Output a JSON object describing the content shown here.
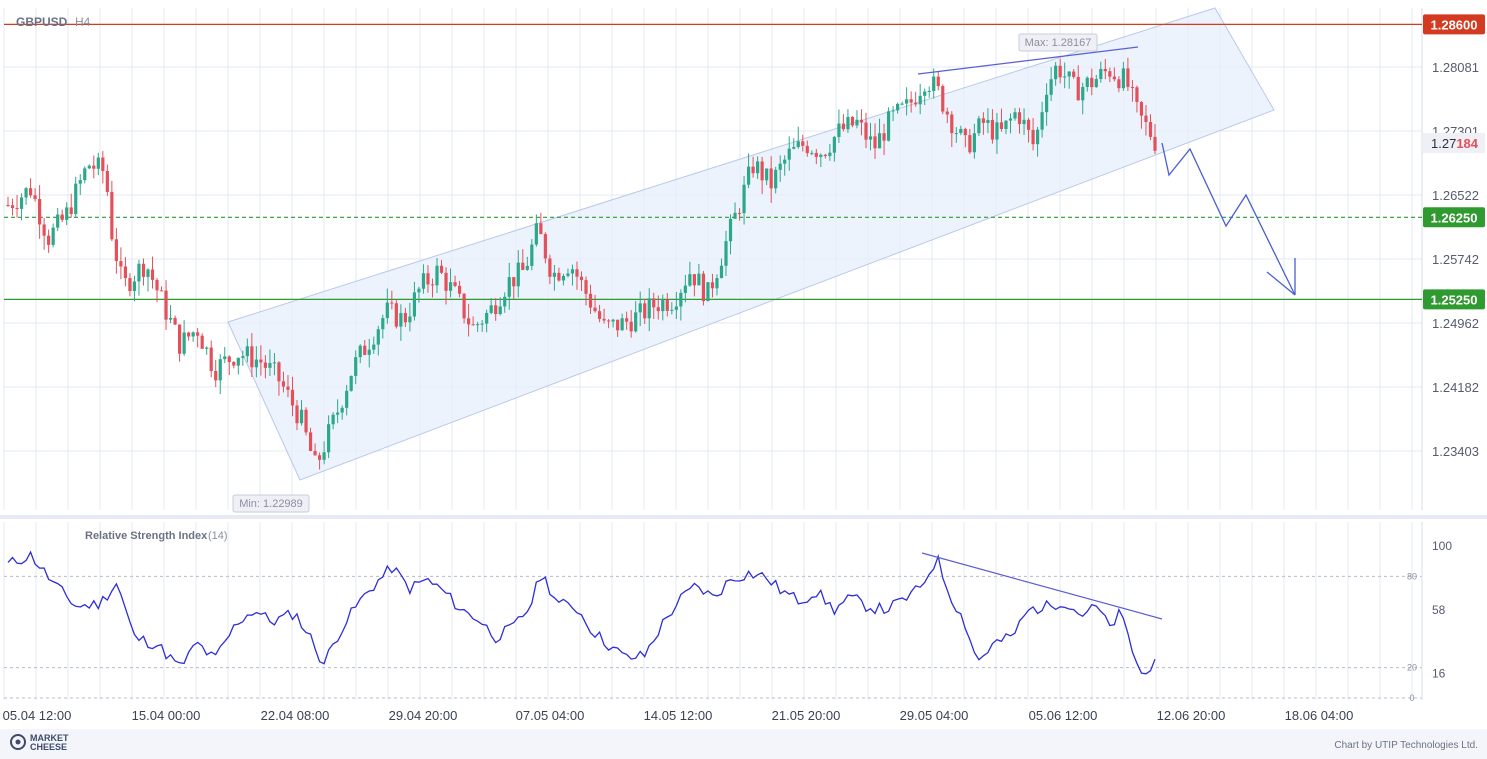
{
  "header": {
    "symbol": "GBPUSD",
    "timeframe": "H4"
  },
  "colors": {
    "up": "#2ba88a",
    "down": "#e3505a",
    "channel_fill": "#e7effb",
    "channel_edge": "#b9c8ea",
    "resistance": "#d43a1f",
    "support": "#2f9a2f",
    "projection": "#4a5fd0",
    "rsi_line": "#2d2fd6",
    "price_tag": "#eef0f6"
  },
  "price_axis": {
    "ticks": [
      "1.28081",
      "1.27301",
      "1.26522",
      "1.25742",
      "1.24962",
      "1.24182",
      "1.23403"
    ]
  },
  "time_axis": {
    "labels": [
      "05.04 12:00",
      "15.04 00:00",
      "22.04 08:00",
      "29.04 20:00",
      "07.05 04:00",
      "14.05 12:00",
      "21.05 20:00",
      "29.05 04:00",
      "05.06 12:00",
      "12.06 20:00",
      "18.06 04:00"
    ]
  },
  "levels": [
    {
      "value": 1.286,
      "label": "1.28600",
      "style": "solid",
      "color": "#d43a1f"
    },
    {
      "value": 1.2625,
      "label": "1.26250",
      "style": "dashed",
      "color": "#2f9a2f"
    },
    {
      "value": 1.2525,
      "label": "1.25250",
      "style": "solid",
      "color": "#2f9a2f"
    }
  ],
  "current_price": {
    "main": "1.27",
    "highlight": "184"
  },
  "annotations": {
    "max": "Max: 1.28167",
    "min": "Min: 1.22989"
  },
  "rsi": {
    "title": "Relative Strength Index",
    "period": "(14)",
    "axis_ticks": [
      "100",
      "58",
      "16"
    ],
    "levels": [
      "80",
      "20",
      "0"
    ]
  },
  "footer": {
    "logo_line1": "MARKET",
    "logo_line2": "CHEESE",
    "credit": "Chart by UTIP Technologies Ltd."
  },
  "chart_data": {
    "type": "candlestick",
    "symbol": "GBPUSD",
    "timeframe": "H4",
    "price_range": [
      1.229,
      1.287
    ],
    "waypoints": [
      {
        "x": 0.0,
        "price": 1.264
      },
      {
        "x": 0.02,
        "price": 1.266
      },
      {
        "x": 0.035,
        "price": 1.26
      },
      {
        "x": 0.05,
        "price": 1.2625
      },
      {
        "x": 0.07,
        "price": 1.269
      },
      {
        "x": 0.085,
        "price": 1.268
      },
      {
        "x": 0.09,
        "price": 1.261
      },
      {
        "x": 0.1,
        "price": 1.254
      },
      {
        "x": 0.12,
        "price": 1.257
      },
      {
        "x": 0.135,
        "price": 1.252
      },
      {
        "x": 0.15,
        "price": 1.247
      },
      {
        "x": 0.165,
        "price": 1.249
      },
      {
        "x": 0.18,
        "price": 1.244
      },
      {
        "x": 0.2,
        "price": 1.246
      },
      {
        "x": 0.22,
        "price": 1.245
      },
      {
        "x": 0.235,
        "price": 1.243
      },
      {
        "x": 0.255,
        "price": 1.238
      },
      {
        "x": 0.268,
        "price": 1.232
      },
      {
        "x": 0.285,
        "price": 1.238
      },
      {
        "x": 0.3,
        "price": 1.244
      },
      {
        "x": 0.315,
        "price": 1.2475
      },
      {
        "x": 0.33,
        "price": 1.251
      },
      {
        "x": 0.345,
        "price": 1.25
      },
      {
        "x": 0.36,
        "price": 1.254
      },
      {
        "x": 0.375,
        "price": 1.256
      },
      {
        "x": 0.39,
        "price": 1.253
      },
      {
        "x": 0.405,
        "price": 1.249
      },
      {
        "x": 0.42,
        "price": 1.251
      },
      {
        "x": 0.435,
        "price": 1.2545
      },
      {
        "x": 0.45,
        "price": 1.256
      },
      {
        "x": 0.462,
        "price": 1.261
      },
      {
        "x": 0.475,
        "price": 1.2555
      },
      {
        "x": 0.49,
        "price": 1.257
      },
      {
        "x": 0.505,
        "price": 1.253
      },
      {
        "x": 0.52,
        "price": 1.249
      },
      {
        "x": 0.535,
        "price": 1.2495
      },
      {
        "x": 0.55,
        "price": 1.2505
      },
      {
        "x": 0.565,
        "price": 1.252
      },
      {
        "x": 0.58,
        "price": 1.2525
      },
      {
        "x": 0.595,
        "price": 1.256
      },
      {
        "x": 0.61,
        "price": 1.253
      },
      {
        "x": 0.625,
        "price": 1.259
      },
      {
        "x": 0.64,
        "price": 1.265
      },
      {
        "x": 0.65,
        "price": 1.269
      },
      {
        "x": 0.665,
        "price": 1.2665
      },
      {
        "x": 0.68,
        "price": 1.27
      },
      {
        "x": 0.695,
        "price": 1.2715
      },
      {
        "x": 0.71,
        "price": 1.2705
      },
      {
        "x": 0.725,
        "price": 1.273
      },
      {
        "x": 0.74,
        "price": 1.274
      },
      {
        "x": 0.755,
        "price": 1.271
      },
      {
        "x": 0.77,
        "price": 1.2745
      },
      {
        "x": 0.785,
        "price": 1.276
      },
      {
        "x": 0.8,
        "price": 1.2795
      },
      {
        "x": 0.81,
        "price": 1.278
      },
      {
        "x": 0.82,
        "price": 1.275
      },
      {
        "x": 0.835,
        "price": 1.271
      },
      {
        "x": 0.85,
        "price": 1.274
      },
      {
        "x": 0.865,
        "price": 1.2725
      },
      {
        "x": 0.88,
        "price": 1.2755
      },
      {
        "x": 0.895,
        "price": 1.271
      },
      {
        "x": 0.905,
        "price": 1.2785
      },
      {
        "x": 0.915,
        "price": 1.281
      },
      {
        "x": 0.93,
        "price": 1.278
      },
      {
        "x": 0.945,
        "price": 1.279
      },
      {
        "x": 0.96,
        "price": 1.2805
      },
      {
        "x": 0.975,
        "price": 1.279
      },
      {
        "x": 0.985,
        "price": 1.275
      },
      {
        "x": 0.995,
        "price": 1.273
      },
      {
        "x": 1.0,
        "price": 1.2718
      }
    ],
    "rsi_waypoints": [
      {
        "x": 0.0,
        "rsi": 88
      },
      {
        "x": 0.02,
        "rsi": 94
      },
      {
        "x": 0.04,
        "rsi": 75
      },
      {
        "x": 0.06,
        "rsi": 60
      },
      {
        "x": 0.08,
        "rsi": 62
      },
      {
        "x": 0.095,
        "rsi": 76
      },
      {
        "x": 0.11,
        "rsi": 40
      },
      {
        "x": 0.13,
        "rsi": 35
      },
      {
        "x": 0.15,
        "rsi": 20
      },
      {
        "x": 0.165,
        "rsi": 36
      },
      {
        "x": 0.18,
        "rsi": 25
      },
      {
        "x": 0.2,
        "rsi": 50
      },
      {
        "x": 0.215,
        "rsi": 58
      },
      {
        "x": 0.23,
        "rsi": 50
      },
      {
        "x": 0.25,
        "rsi": 56
      },
      {
        "x": 0.265,
        "rsi": 38
      },
      {
        "x": 0.275,
        "rsi": 22
      },
      {
        "x": 0.29,
        "rsi": 45
      },
      {
        "x": 0.305,
        "rsi": 62
      },
      {
        "x": 0.32,
        "rsi": 75
      },
      {
        "x": 0.335,
        "rsi": 86
      },
      {
        "x": 0.35,
        "rsi": 72
      },
      {
        "x": 0.365,
        "rsi": 78
      },
      {
        "x": 0.38,
        "rsi": 70
      },
      {
        "x": 0.395,
        "rsi": 58
      },
      {
        "x": 0.41,
        "rsi": 52
      },
      {
        "x": 0.425,
        "rsi": 40
      },
      {
        "x": 0.44,
        "rsi": 46
      },
      {
        "x": 0.455,
        "rsi": 60
      },
      {
        "x": 0.465,
        "rsi": 82
      },
      {
        "x": 0.48,
        "rsi": 62
      },
      {
        "x": 0.495,
        "rsi": 60
      },
      {
        "x": 0.51,
        "rsi": 44
      },
      {
        "x": 0.525,
        "rsi": 34
      },
      {
        "x": 0.54,
        "rsi": 26
      },
      {
        "x": 0.555,
        "rsi": 28
      },
      {
        "x": 0.57,
        "rsi": 48
      },
      {
        "x": 0.585,
        "rsi": 64
      },
      {
        "x": 0.6,
        "rsi": 74
      },
      {
        "x": 0.615,
        "rsi": 66
      },
      {
        "x": 0.63,
        "rsi": 78
      },
      {
        "x": 0.645,
        "rsi": 82
      },
      {
        "x": 0.66,
        "rsi": 80
      },
      {
        "x": 0.675,
        "rsi": 70
      },
      {
        "x": 0.69,
        "rsi": 64
      },
      {
        "x": 0.705,
        "rsi": 70
      },
      {
        "x": 0.72,
        "rsi": 58
      },
      {
        "x": 0.735,
        "rsi": 66
      },
      {
        "x": 0.75,
        "rsi": 60
      },
      {
        "x": 0.765,
        "rsi": 58
      },
      {
        "x": 0.78,
        "rsi": 64
      },
      {
        "x": 0.795,
        "rsi": 72
      },
      {
        "x": 0.81,
        "rsi": 92
      },
      {
        "x": 0.82,
        "rsi": 70
      },
      {
        "x": 0.835,
        "rsi": 48
      },
      {
        "x": 0.845,
        "rsi": 24
      },
      {
        "x": 0.86,
        "rsi": 36
      },
      {
        "x": 0.875,
        "rsi": 40
      },
      {
        "x": 0.89,
        "rsi": 58
      },
      {
        "x": 0.905,
        "rsi": 60
      },
      {
        "x": 0.92,
        "rsi": 64
      },
      {
        "x": 0.935,
        "rsi": 55
      },
      {
        "x": 0.95,
        "rsi": 60
      },
      {
        "x": 0.96,
        "rsi": 46
      },
      {
        "x": 0.97,
        "rsi": 56
      },
      {
        "x": 0.98,
        "rsi": 32
      },
      {
        "x": 0.99,
        "rsi": 12
      },
      {
        "x": 1.0,
        "rsi": 28
      }
    ]
  }
}
